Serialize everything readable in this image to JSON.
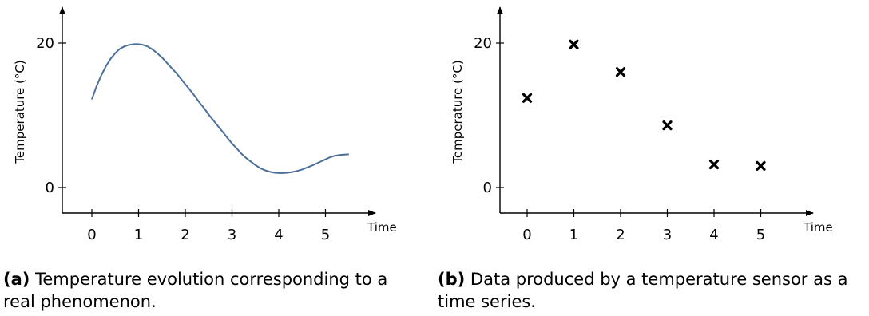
{
  "figures": [
    {
      "caption_tag": "(a)",
      "caption_text": "Temperature evolution corresponding to a real phenomenon."
    },
    {
      "caption_tag": "(b)",
      "caption_text": "Data produced by a temperature sensor as a time series."
    }
  ],
  "chart_data": [
    {
      "type": "line",
      "title": "",
      "xlabel": "Time",
      "ylabel": "Temperature (°C)",
      "xticks": [
        "0",
        "1",
        "2",
        "3",
        "4",
        "5"
      ],
      "yticks": [
        "0",
        "20"
      ],
      "xlim": [
        -0.6,
        5.9
      ],
      "ylim": [
        -3.5,
        24
      ],
      "grid": false,
      "line_color": "#4a6f9a",
      "series": [
        {
          "x": [
            0,
            0.1,
            0.2,
            0.3,
            0.4,
            0.5,
            0.6,
            0.7,
            0.8,
            0.9,
            1.0,
            1.1,
            1.2,
            1.3,
            1.4,
            1.5,
            1.6,
            1.7,
            1.8,
            1.9,
            2.0,
            2.1,
            2.2,
            2.3,
            2.4,
            2.5,
            2.6,
            2.7,
            2.8,
            2.9,
            3.0,
            3.1,
            3.2,
            3.3,
            3.4,
            3.5,
            3.6,
            3.7,
            3.8,
            3.9,
            4.0,
            4.1,
            4.2,
            4.3,
            4.4,
            4.5,
            4.6,
            4.7,
            4.8,
            4.9,
            5.0,
            5.1,
            5.2,
            5.3,
            5.4,
            5.5
          ],
          "y": [
            12.2,
            14.0,
            15.5,
            16.8,
            17.8,
            18.6,
            19.2,
            19.55,
            19.75,
            19.85,
            19.85,
            19.75,
            19.5,
            19.1,
            18.6,
            18.0,
            17.3,
            16.6,
            15.9,
            15.1,
            14.3,
            13.5,
            12.7,
            11.8,
            11.0,
            10.1,
            9.3,
            8.5,
            7.7,
            6.9,
            6.1,
            5.4,
            4.7,
            4.1,
            3.6,
            3.1,
            2.7,
            2.4,
            2.2,
            2.05,
            2.0,
            2.0,
            2.05,
            2.15,
            2.3,
            2.5,
            2.75,
            3.0,
            3.3,
            3.6,
            3.9,
            4.2,
            4.4,
            4.5,
            4.55,
            4.6
          ]
        }
      ]
    },
    {
      "type": "scatter",
      "title": "",
      "xlabel": "Time",
      "ylabel": "Temperature (°C)",
      "xticks": [
        "0",
        "1",
        "2",
        "3",
        "4",
        "5"
      ],
      "yticks": [
        "0",
        "20"
      ],
      "xlim": [
        -0.6,
        5.9
      ],
      "ylim": [
        -3.5,
        24
      ],
      "grid": false,
      "marker": "x",
      "series": [
        {
          "x": [
            0,
            1,
            2,
            3,
            4,
            5
          ],
          "y": [
            12.4,
            19.8,
            16.0,
            8.6,
            3.2,
            3.0
          ]
        }
      ]
    }
  ]
}
